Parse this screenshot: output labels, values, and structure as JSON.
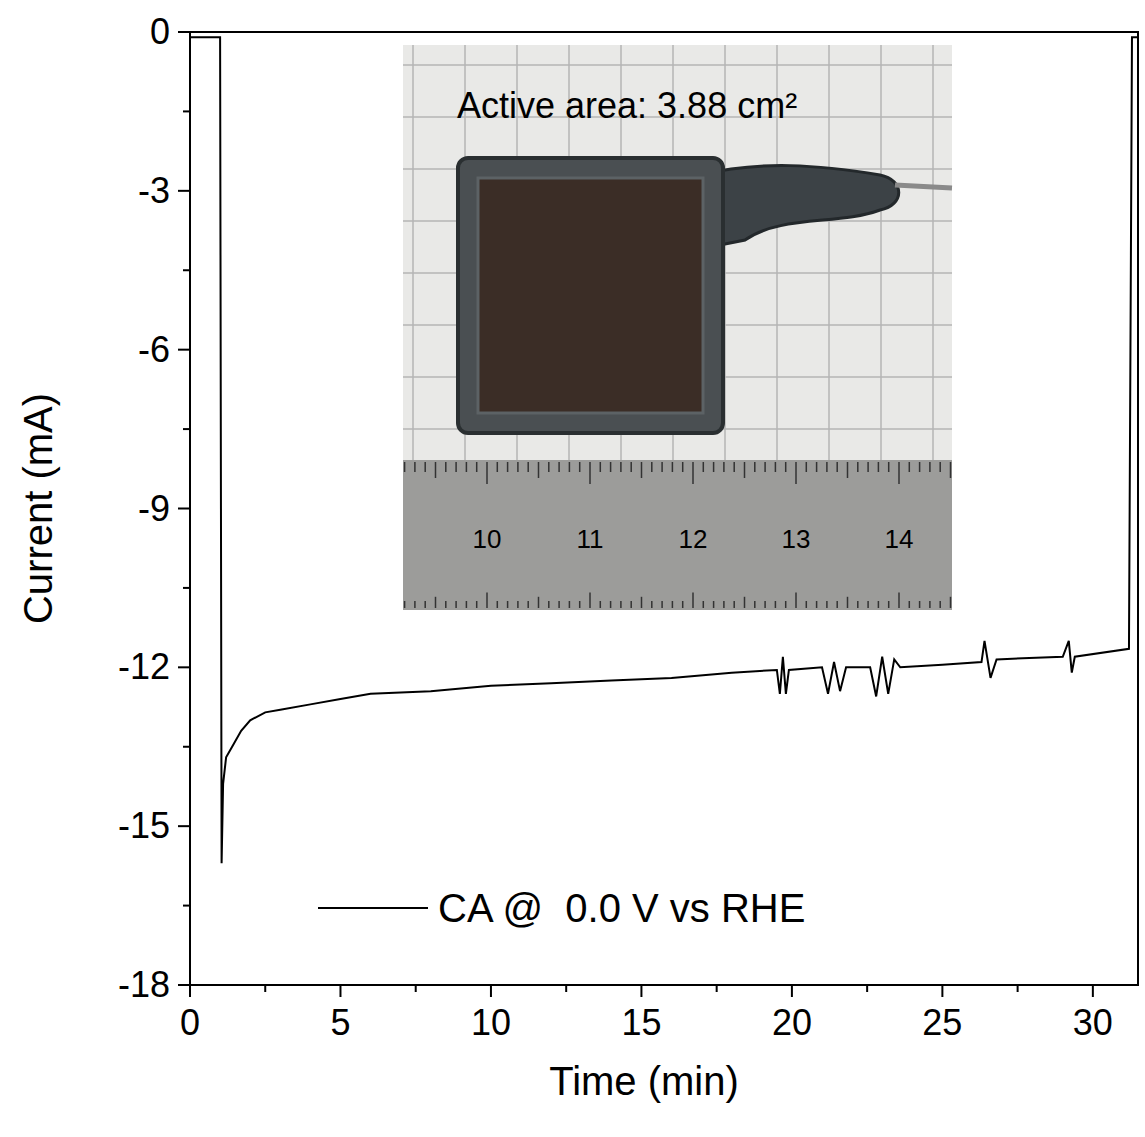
{
  "chart_data": {
    "type": "line",
    "x_label": "Time (min)",
    "y_label": "Current (mA)",
    "xlim": [
      0,
      31.5
    ],
    "ylim": [
      -18,
      0
    ],
    "xticks": [
      0,
      5,
      10,
      15,
      20,
      25,
      30
    ],
    "yticks": [
      -18,
      -15,
      -12,
      -9,
      -6,
      -3,
      0
    ],
    "grid": false,
    "legend": "bottom",
    "x": [
      0,
      1.0,
      1.05,
      1.1,
      1.2,
      1.4,
      1.7,
      2.0,
      2.5,
      3,
      4,
      5,
      6,
      8,
      10,
      12,
      14,
      16,
      18,
      19.5,
      19.6,
      19.7,
      19.8,
      19.9,
      21,
      21.2,
      21.4,
      21.6,
      21.8,
      22.6,
      22.8,
      23.0,
      23.2,
      23.4,
      23.6,
      25,
      26.3,
      26.4,
      26.6,
      26.8,
      29,
      29.2,
      29.3,
      29.4,
      31.2,
      31.3,
      31.5
    ],
    "series": [
      {
        "name": "CA @  0.0 V vs RHE",
        "color": "#000000",
        "line_style": "solid",
        "values": [
          -0.1,
          -0.1,
          -15.7,
          -14.2,
          -13.7,
          -13.5,
          -13.2,
          -13.0,
          -12.85,
          -12.8,
          -12.7,
          -12.6,
          -12.5,
          -12.45,
          -12.35,
          -12.3,
          -12.25,
          -12.2,
          -12.1,
          -12.05,
          -12.5,
          -11.8,
          -12.5,
          -12.05,
          -12.0,
          -12.5,
          -11.9,
          -12.45,
          -12.0,
          -12.0,
          -12.55,
          -11.8,
          -12.5,
          -11.85,
          -12.0,
          -11.95,
          -11.9,
          -11.5,
          -12.2,
          -11.85,
          -11.8,
          -11.5,
          -12.1,
          -11.8,
          -11.65,
          -0.1,
          -0.1
        ]
      }
    ],
    "inset": {
      "label": "Active area: 3.88 cm²",
      "ruler_ticks": [
        10,
        11,
        12,
        13,
        14
      ]
    }
  }
}
